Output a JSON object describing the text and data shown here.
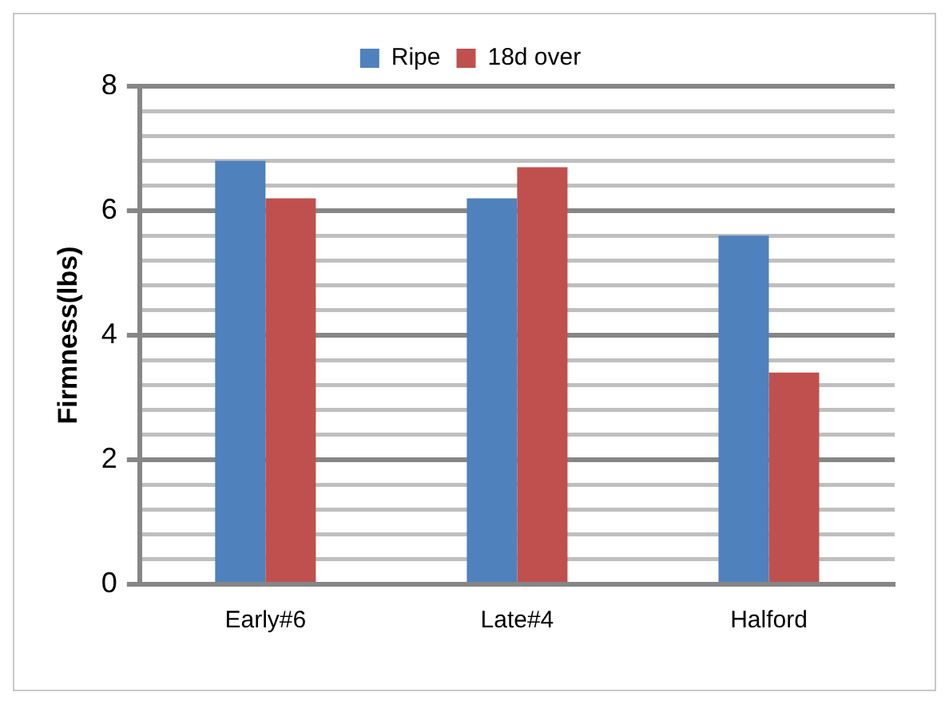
{
  "chart_data": {
    "type": "bar",
    "ylabel": "Firmness(lbs)",
    "categories": [
      "Early#6",
      "Late#4",
      "Halford"
    ],
    "series": [
      {
        "name": "Ripe",
        "color": "#4f81bd",
        "values": [
          6.8,
          6.2,
          5.6
        ]
      },
      {
        "name": "18d over",
        "color": "#c0504d",
        "values": [
          6.2,
          6.7,
          3.4
        ]
      }
    ],
    "ylim": [
      0,
      8
    ],
    "yticks": [
      0,
      {
        "value": 0.4,
        "label": null
      },
      {
        "value": 0.8,
        "label": null
      },
      {
        "value": 1.2,
        "label": null
      },
      {
        "value": 1.6,
        "label": null
      },
      2,
      {
        "value": 2.4,
        "label": null
      },
      {
        "value": 2.8,
        "label": null
      },
      {
        "value": 3.2,
        "label": null
      },
      {
        "value": 3.6,
        "label": null
      },
      4,
      {
        "value": 4.4,
        "label": null
      },
      {
        "value": 4.8,
        "label": null
      },
      {
        "value": 5.2,
        "label": null
      },
      {
        "value": 5.6,
        "label": null
      },
      6,
      {
        "value": 6.4,
        "label": null
      },
      {
        "value": 6.8,
        "label": null
      },
      {
        "value": 7.2,
        "label": null
      },
      {
        "value": 7.6,
        "label": null
      },
      8
    ],
    "grid": "y",
    "legend": "top"
  }
}
